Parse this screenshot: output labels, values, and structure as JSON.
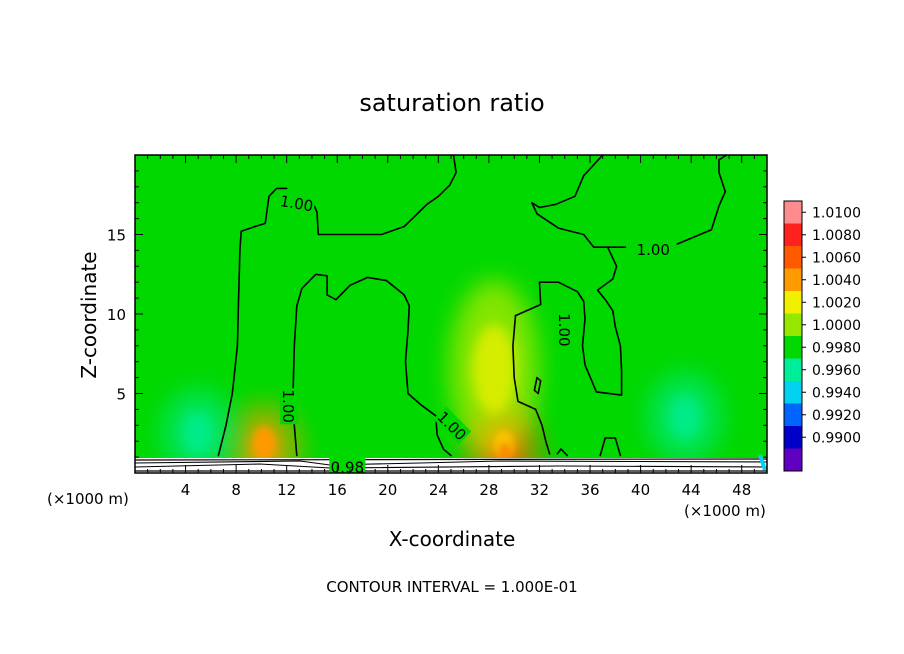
{
  "chart_data": {
    "type": "heatmap",
    "title": "saturation ratio",
    "xlabel": "X-coordinate",
    "ylabel": "Z-coordinate",
    "x_unit_left": "(×1000 m)",
    "x_unit_right": "(×1000 m)",
    "xlim": [
      0,
      50
    ],
    "ylim": [
      0,
      20
    ],
    "x_ticks": [
      4,
      8,
      12,
      16,
      20,
      24,
      28,
      32,
      36,
      40,
      44,
      48
    ],
    "y_ticks": [
      5,
      10,
      15
    ],
    "contour_interval_text": "CONTOUR INTERVAL = 1.000E-01",
    "colorbar": {
      "levels": [
        "1.0100",
        "1.0080",
        "1.0060",
        "1.0040",
        "1.0020",
        "1.0000",
        "0.9980",
        "0.9960",
        "0.9940",
        "0.9920",
        "0.9900"
      ],
      "colors": [
        "#ff8c8c",
        "#ff2020",
        "#ff5a00",
        "#ff9a00",
        "#f0f000",
        "#96e600",
        "#00d800",
        "#00ee9a",
        "#00d2f0",
        "#0064ff",
        "#0000c8",
        "#6000c0"
      ]
    },
    "background_level": "1.0000",
    "contour_labels": [
      {
        "text": "1.00",
        "x": 12.8,
        "z": 17.0
      },
      {
        "text": "1.00",
        "x": 41.0,
        "z": 14.1
      },
      {
        "text": "1.00",
        "x": 34.0,
        "z": 9.0
      },
      {
        "text": "1.00",
        "x": 12.2,
        "z": 4.2
      },
      {
        "text": "1.00",
        "x": 25.1,
        "z": 3.0
      },
      {
        "text": "0.98",
        "x": 16.8,
        "z": 0.4
      }
    ],
    "features": [
      {
        "type": "max",
        "x": 29.2,
        "z": 1.4,
        "value": 1.006
      },
      {
        "type": "max",
        "x": 10.2,
        "z": 1.6,
        "value": 1.004
      },
      {
        "type": "max",
        "x": 28.4,
        "z": 6.5,
        "value": 1.002
      },
      {
        "type": "min",
        "x": 43.5,
        "z": 3.5,
        "value": 0.9985
      },
      {
        "type": "min",
        "x": 5.0,
        "z": 2.5,
        "value": 0.9985
      }
    ],
    "contours": [
      [
        [
          6.6,
          1.1
        ],
        [
          7.2,
          3.0
        ],
        [
          7.7,
          5.0
        ],
        [
          8.1,
          8.0
        ],
        [
          8.2,
          11.0
        ],
        [
          8.3,
          14.0
        ],
        [
          8.4,
          15.2
        ],
        [
          9.5,
          15.5
        ],
        [
          10.3,
          15.7
        ],
        [
          10.6,
          17.4
        ],
        [
          11.2,
          17.9
        ],
        [
          12.0,
          17.9
        ]
      ],
      [
        [
          13.9,
          17.3
        ],
        [
          14.4,
          16.4
        ],
        [
          14.5,
          15.0
        ],
        [
          16.8,
          15.0
        ],
        [
          19.5,
          15.0
        ],
        [
          21.3,
          15.5
        ],
        [
          23.1,
          16.9
        ],
        [
          24.0,
          17.4
        ],
        [
          24.9,
          18.1
        ],
        [
          25.4,
          18.9
        ],
        [
          25.2,
          20.0
        ]
      ],
      [
        [
          12.8,
          1.1
        ],
        [
          12.6,
          3.0
        ],
        [
          12.5,
          5.0
        ],
        [
          12.6,
          8.0
        ],
        [
          12.8,
          10.5
        ],
        [
          13.2,
          11.6
        ],
        [
          14.3,
          12.5
        ],
        [
          15.2,
          12.4
        ],
        [
          15.2,
          11.2
        ],
        [
          15.9,
          10.9
        ],
        [
          17.0,
          11.8
        ],
        [
          18.4,
          12.3
        ],
        [
          19.9,
          12.1
        ],
        [
          21.3,
          11.2
        ],
        [
          21.7,
          10.5
        ],
        [
          21.6,
          9.0
        ],
        [
          21.4,
          7.0
        ],
        [
          21.6,
          5.0
        ],
        [
          22.6,
          4.3
        ],
        [
          23.8,
          3.6
        ],
        [
          23.9,
          2.4
        ],
        [
          24.4,
          1.5
        ],
        [
          25.0,
          1.1
        ]
      ],
      [
        [
          37.0,
          20.0
        ],
        [
          35.5,
          18.7
        ],
        [
          34.8,
          17.4
        ],
        [
          33.3,
          16.9
        ],
        [
          32.0,
          16.7
        ],
        [
          31.4,
          17.0
        ],
        [
          31.8,
          16.3
        ],
        [
          33.5,
          15.4
        ],
        [
          35.5,
          15.0
        ],
        [
          36.3,
          14.2
        ],
        [
          37.4,
          14.2
        ],
        [
          38.8,
          14.2
        ]
      ],
      [
        [
          42.9,
          14.4
        ],
        [
          45.6,
          15.3
        ],
        [
          46.2,
          16.8
        ],
        [
          46.7,
          17.7
        ],
        [
          46.2,
          18.9
        ],
        [
          46.2,
          19.7
        ],
        [
          46.8,
          20.0
        ]
      ],
      [
        [
          30.1,
          9.9
        ],
        [
          32.1,
          10.6
        ],
        [
          32.0,
          12.0
        ],
        [
          33.5,
          12.0
        ],
        [
          35.0,
          11.4
        ],
        [
          35.5,
          10.8
        ],
        [
          35.6,
          9.7
        ],
        [
          35.4,
          8.0
        ],
        [
          35.6,
          6.8
        ],
        [
          36.5,
          5.1
        ],
        [
          38.5,
          4.9
        ],
        [
          38.5,
          6.4
        ],
        [
          38.4,
          8.0
        ],
        [
          38.0,
          9.2
        ],
        [
          37.8,
          10.2
        ],
        [
          37.3,
          10.8
        ],
        [
          36.6,
          11.5
        ],
        [
          37.8,
          12.2
        ],
        [
          38.1,
          13.0
        ],
        [
          37.4,
          14.2
        ]
      ],
      [
        [
          30.1,
          9.9
        ],
        [
          29.9,
          8.0
        ],
        [
          30.0,
          6.0
        ],
        [
          30.3,
          4.5
        ],
        [
          31.7,
          4.0
        ],
        [
          32.2,
          3.0
        ],
        [
          32.5,
          2.0
        ],
        [
          32.8,
          1.2
        ]
      ],
      [
        [
          33.4,
          1.2
        ],
        [
          33.7,
          1.5
        ],
        [
          34.2,
          1.1
        ]
      ],
      [
        [
          36.8,
          1.1
        ],
        [
          37.2,
          2.2
        ],
        [
          38.0,
          2.2
        ],
        [
          38.4,
          1.1
        ]
      ],
      [
        [
          31.6,
          5.2
        ],
        [
          31.8,
          6.0
        ],
        [
          32.1,
          5.8
        ],
        [
          31.9,
          5.0
        ],
        [
          31.6,
          5.2
        ]
      ]
    ]
  }
}
